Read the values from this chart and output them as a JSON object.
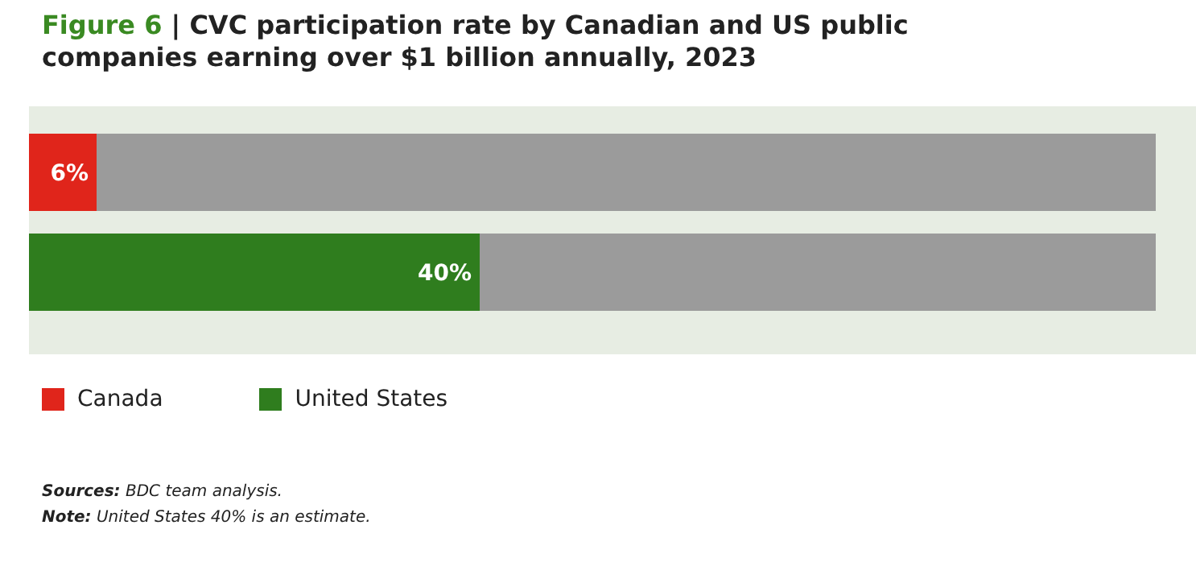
{
  "chart_data": {
    "type": "bar",
    "orientation": "horizontal",
    "stacked": true,
    "title": "Figure 6 | CVC participation rate by Canadian and US public companies earning over $1 billion annually, 2023",
    "categories": [
      null,
      null
    ],
    "series": [
      {
        "name": "Canada",
        "color": "#e0251b",
        "values": [
          6,
          null
        ],
        "value_labels": [
          "6%",
          null
        ]
      },
      {
        "name": "United States",
        "color": "#2f7d1e",
        "values": [
          null,
          40
        ],
        "value_labels": [
          null,
          "40%"
        ]
      },
      {
        "color": "#9b9b9b",
        "values": [
          94,
          60
        ]
      }
    ],
    "xlim": [
      0,
      100
    ],
    "tick_labels": false,
    "legend": "bottom left",
    "annotations": [
      "Sources: BDC team analysis.",
      "Note: United States 40% is an estimate."
    ]
  }
}
